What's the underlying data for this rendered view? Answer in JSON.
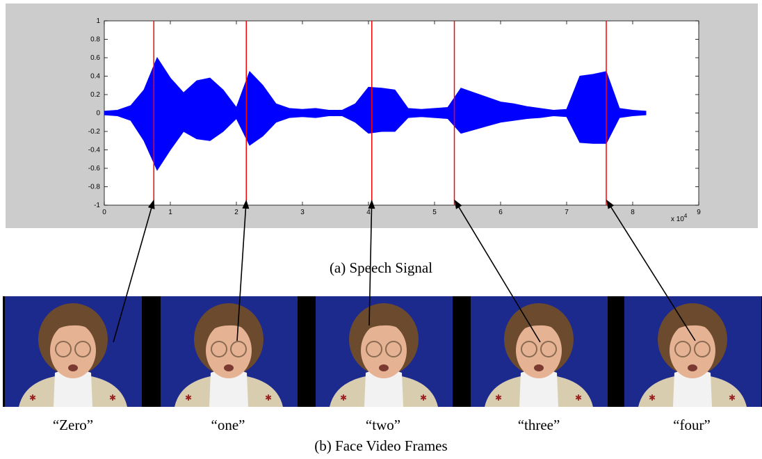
{
  "chart_data": {
    "type": "waveform",
    "x": [
      0,
      0.2,
      0.4,
      0.6,
      0.8,
      1.0,
      1.2,
      1.4,
      1.6,
      1.8,
      2.0,
      2.2,
      2.4,
      2.6,
      2.8,
      3.0,
      3.2,
      3.4,
      3.6,
      3.8,
      4.0,
      4.2,
      4.4,
      4.6,
      4.8,
      5.0,
      5.2,
      5.4,
      5.6,
      5.8,
      6.0,
      6.2,
      6.4,
      6.6,
      6.8,
      7.0,
      7.2,
      7.4,
      7.6,
      7.8,
      8.0,
      8.2
    ],
    "series": [
      {
        "color": "#0000ff",
        "values": [
          0.02,
          0.03,
          0.08,
          0.25,
          0.6,
          0.38,
          0.22,
          0.35,
          0.38,
          0.25,
          0.06,
          0.45,
          0.3,
          0.1,
          0.05,
          0.04,
          0.05,
          0.03,
          0.03,
          0.1,
          0.28,
          0.27,
          0.25,
          0.05,
          0.04,
          0.05,
          0.06,
          0.27,
          0.22,
          0.17,
          0.12,
          0.1,
          0.07,
          0.05,
          0.03,
          0.04,
          0.4,
          0.42,
          0.45,
          0.05,
          0.03,
          0.02
        ]
      },
      {
        "color": "#0000ff",
        "values": [
          -0.02,
          -0.03,
          -0.08,
          -0.3,
          -0.62,
          -0.4,
          -0.2,
          -0.28,
          -0.3,
          -0.2,
          -0.06,
          -0.35,
          -0.25,
          -0.1,
          -0.05,
          -0.04,
          -0.05,
          -0.03,
          -0.03,
          -0.1,
          -0.22,
          -0.2,
          -0.2,
          -0.05,
          -0.04,
          -0.05,
          -0.06,
          -0.22,
          -0.18,
          -0.14,
          -0.1,
          -0.08,
          -0.06,
          -0.05,
          -0.03,
          -0.04,
          -0.32,
          -0.33,
          -0.33,
          -0.05,
          -0.03,
          -0.02
        ]
      }
    ],
    "markers": [
      0.75,
      2.15,
      4.05,
      5.3,
      7.6
    ],
    "marker_color": "#ff0000",
    "xlim": [
      0,
      9
    ],
    "ylim": [
      -1,
      1
    ],
    "xticks": [
      0,
      1,
      2,
      3,
      4,
      5,
      6,
      7,
      8,
      9
    ],
    "yticks": [
      -1,
      -0.8,
      -0.6,
      -0.4,
      -0.2,
      0,
      0.2,
      0.4,
      0.6,
      0.8,
      1
    ],
    "x_multiplier": {
      "base": "x 10",
      "exponent": "4"
    }
  },
  "captions": {
    "signal": "(a) Speech Signal",
    "words": [
      "“Zero”",
      "“one”",
      "“two”",
      "“three”",
      "“four”"
    ],
    "frames": "(b) Face Video Frames"
  }
}
